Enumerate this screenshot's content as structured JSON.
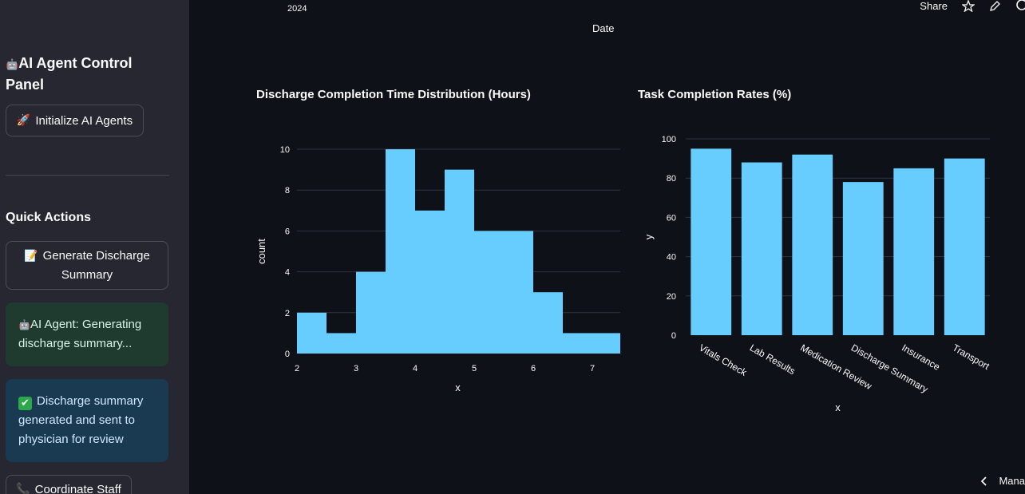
{
  "sidebar": {
    "title_icon": "🤖",
    "title": "AI Agent Control Panel",
    "init_button": {
      "icon": "🚀",
      "label": "Initialize AI Agents"
    },
    "quick_actions_heading": "Quick Actions",
    "generate_button": {
      "icon": "📝",
      "label": "Generate Discharge Summary"
    },
    "info_alert": {
      "icon": "🤖",
      "text": "AI Agent: Generating discharge summary..."
    },
    "success_alert": {
      "icon": "✔",
      "text": "Discharge summary generated and sent to physician for review"
    },
    "coordinate_button": {
      "icon": "📞",
      "label": "Coordinate Staff"
    }
  },
  "top_chart_fragment": {
    "year_tick": "2024",
    "x_axis_label": "Date"
  },
  "toolbar": {
    "share_label": "Share",
    "star_icon": "star-icon",
    "edit_icon": "pencil-icon",
    "github_icon": "github-icon"
  },
  "expander": {
    "chevron_icon": "chevron-left-icon",
    "label": "Mana"
  },
  "colors": {
    "bar": "#66cdfe",
    "grid": "#31333f",
    "sidebar_bg": "#262730",
    "main_bg": "#0e1117"
  },
  "chart_data": [
    {
      "type": "bar",
      "chart": "histogram",
      "title": "Discharge Completion Time Distribution (Hours)",
      "xlabel": "x",
      "ylabel": "count",
      "bin_edges": [
        2,
        2.5,
        3,
        3.5,
        4,
        4.5,
        5,
        5.5,
        6,
        6.5,
        7,
        7.5
      ],
      "values": [
        2,
        1,
        4,
        10,
        7,
        9,
        6,
        6,
        3,
        1,
        1
      ],
      "xlim": [
        2,
        7.5
      ],
      "ylim": [
        0,
        10
      ],
      "xticks": [
        2,
        3,
        4,
        5,
        6,
        7
      ],
      "yticks": [
        0,
        2,
        4,
        6,
        8,
        10
      ],
      "grid": true
    },
    {
      "type": "bar",
      "title": "Task Completion Rates (%)",
      "xlabel": "x",
      "ylabel": "y",
      "categories": [
        "Vitals Check",
        "Lab Results",
        "Medication Review",
        "Discharge Summary",
        "Insurance",
        "Transport"
      ],
      "values": [
        95,
        88,
        92,
        78,
        85,
        90
      ],
      "ylim": [
        0,
        100
      ],
      "yticks": [
        0,
        20,
        40,
        60,
        80,
        100
      ],
      "grid": true
    }
  ]
}
